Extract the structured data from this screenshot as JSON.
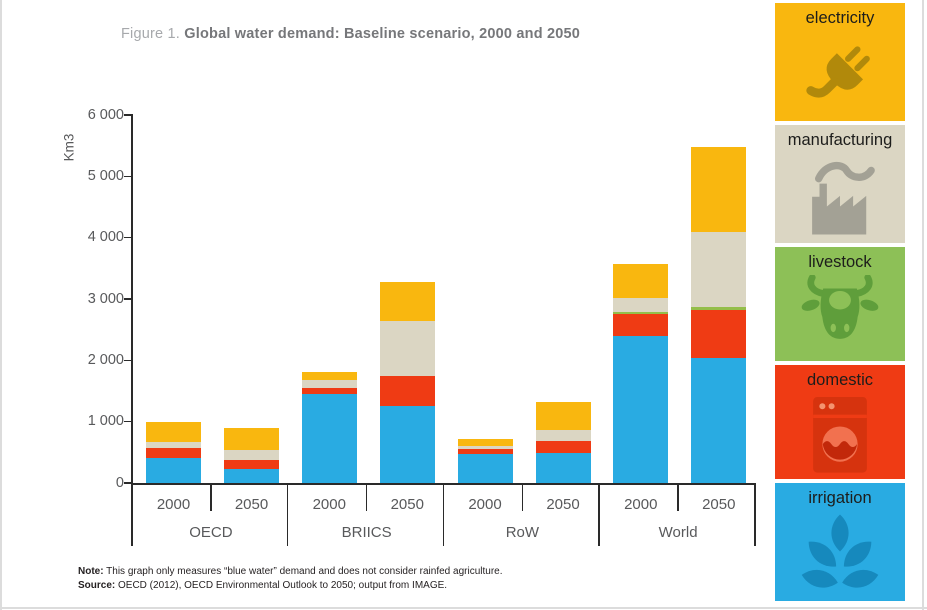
{
  "title": {
    "figure_label": "Figure 1. ",
    "text": "Global water demand: Baseline scenario, 2000 and 2050"
  },
  "notes": {
    "note_label": "Note:",
    "note_text": " This graph only measures “blue water” demand and does not consider rainfed agriculture.",
    "source_label": "Source:",
    "source_text": " OECD (2012), OECD Environmental Outlook to 2050; output from IMAGE."
  },
  "chart_data": {
    "type": "bar",
    "stacked": true,
    "title": "Global water demand: Baseline scenario, 2000 and 2050",
    "ylabel": "Km3",
    "ylim": [
      0,
      6000
    ],
    "yticks": [
      6000,
      5000,
      4000,
      3000,
      2000,
      1000,
      0
    ],
    "ytick_labels": [
      "6 000",
      "5 000",
      "4 000",
      "3 000",
      "2 000",
      "1 000",
      "0"
    ],
    "grid": false,
    "legend_position": "right-column",
    "stack_order_bottom_to_top": [
      "irrigation",
      "domestic",
      "livestock",
      "manufacturing",
      "electricity"
    ],
    "colors": {
      "irrigation": "#29abe2",
      "domestic": "#ef3b14",
      "livestock": "#94be4a",
      "manufacturing": "#dbd6c3",
      "electricity": "#f9b70f"
    },
    "groups": [
      {
        "label": "OECD",
        "bars": [
          {
            "year": "2000",
            "values": {
              "irrigation": 410,
              "domestic": 155,
              "livestock": 0,
              "manufacturing": 105,
              "electricity": 330
            }
          },
          {
            "year": "2050",
            "values": {
              "irrigation": 220,
              "domestic": 160,
              "livestock": 0,
              "manufacturing": 160,
              "electricity": 350
            }
          }
        ]
      },
      {
        "label": "BRIICS",
        "bars": [
          {
            "year": "2000",
            "values": {
              "irrigation": 1450,
              "domestic": 100,
              "livestock": 0,
              "manufacturing": 125,
              "electricity": 130
            }
          },
          {
            "year": "2050",
            "values": {
              "irrigation": 1260,
              "domestic": 490,
              "livestock": 0,
              "manufacturing": 890,
              "electricity": 640
            }
          }
        ]
      },
      {
        "label": "RoW",
        "bars": [
          {
            "year": "2000",
            "values": {
              "irrigation": 470,
              "domestic": 80,
              "livestock": 0,
              "manufacturing": 55,
              "electricity": 110
            }
          },
          {
            "year": "2050",
            "values": {
              "irrigation": 490,
              "domestic": 190,
              "livestock": 0,
              "manufacturing": 190,
              "electricity": 450
            }
          }
        ]
      },
      {
        "label": "World",
        "bars": [
          {
            "year": "2000",
            "values": {
              "irrigation": 2390,
              "domestic": 365,
              "livestock": 30,
              "manufacturing": 235,
              "electricity": 555
            }
          },
          {
            "year": "2050",
            "values": {
              "irrigation": 2030,
              "domestic": 790,
              "livestock": 55,
              "manufacturing": 1220,
              "electricity": 1390
            }
          }
        ]
      }
    ]
  },
  "legend": {
    "items": [
      {
        "label": "electricity",
        "tile_color": "#f9b70f",
        "label_color": "#1d1d1b",
        "icon": "plug-icon"
      },
      {
        "label": "manufacturing",
        "tile_color": "#dbd6c3",
        "label_color": "#1d1d1b",
        "icon": "factory-icon"
      },
      {
        "label": "livestock",
        "tile_color": "#8dc057",
        "label_color": "#1d1d1b",
        "icon": "cow-icon"
      },
      {
        "label": "domestic",
        "tile_color": "#ef3b14",
        "label_color": "#1d1d1b",
        "icon": "washing-machine-icon"
      },
      {
        "label": "irrigation",
        "tile_color": "#29abe2",
        "label_color": "#0f4e67",
        "icon": "leaves-icon"
      }
    ]
  }
}
